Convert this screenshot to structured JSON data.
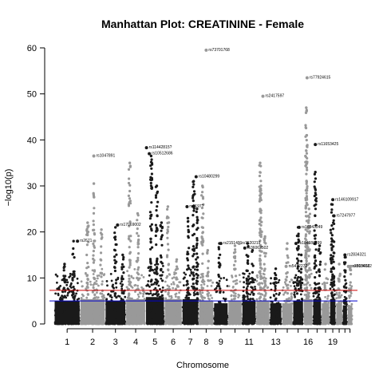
{
  "chart_data": {
    "type": "scatter",
    "title": "Manhattan Plot: CREATININE - Female",
    "xlabel": "Chromosome",
    "ylabel": "−log10(p)",
    "ylim": [
      0,
      62
    ],
    "yticks": [
      0,
      10,
      20,
      30,
      40,
      50,
      60
    ],
    "grid": false,
    "legend": "none",
    "colors": {
      "odd": "#1a1a1a",
      "even": "#999999",
      "suggestive_line": "#cc0000",
      "genomewide_line": "#0000cc"
    },
    "thresholds": [
      {
        "name": "suggestive",
        "value": 7.3,
        "color": "#cc0000"
      },
      {
        "name": "genomewide",
        "value": 5.0,
        "color": "#0000cc"
      }
    ],
    "chromosomes": [
      "1",
      "2",
      "3",
      "4",
      "5",
      "6",
      "7",
      "8",
      "9",
      "10",
      "11",
      "12",
      "13",
      "14",
      "15",
      "16",
      "17",
      "18",
      "19",
      "20",
      "21",
      "22"
    ],
    "x_tick_labels": [
      "1",
      "2",
      "3",
      "4",
      "5",
      "6",
      "7",
      "8",
      "9",
      "11",
      "13",
      "16",
      "19"
    ],
    "chrom_peaks": [
      {
        "chrom": "1",
        "baseline_max": 11,
        "peaks": [
          {
            "y": 13,
            "frac": 0.4
          },
          {
            "y": 18,
            "frac": 0.75
          }
        ]
      },
      {
        "chrom": "2",
        "baseline_max": 12,
        "peaks": [
          {
            "y": 30.5,
            "frac": 0.55
          },
          {
            "y": 22,
            "frac": 0.3
          },
          {
            "y": 20.5,
            "frac": 0.85
          }
        ]
      },
      {
        "chrom": "3",
        "baseline_max": 11,
        "peaks": [
          {
            "y": 21,
            "frac": 0.5
          },
          {
            "y": 15,
            "frac": 0.85
          }
        ]
      },
      {
        "chrom": "4",
        "baseline_max": 12,
        "peaks": [
          {
            "y": 35,
            "frac": 0.2
          },
          {
            "y": 24,
            "frac": 0.6
          }
        ]
      },
      {
        "chrom": "5",
        "baseline_max": 13,
        "peaks": [
          {
            "y": 36.5,
            "frac": 0.3
          },
          {
            "y": 30,
            "frac": 0.6
          },
          {
            "y": 22,
            "frac": 0.85
          }
        ]
      },
      {
        "chrom": "6",
        "baseline_max": 12,
        "peaks": [
          {
            "y": 25.5,
            "frac": 0.2
          },
          {
            "y": 14,
            "frac": 0.7
          }
        ]
      },
      {
        "chrom": "7",
        "baseline_max": 12,
        "peaks": [
          {
            "y": 23,
            "frac": 0.35
          },
          {
            "y": 31,
            "frac": 0.7
          },
          {
            "y": 25,
            "frac": 0.9
          }
        ]
      },
      {
        "chrom": "8",
        "baseline_max": 11,
        "peaks": [
          {
            "y": 30,
            "frac": 0.25
          },
          {
            "y": 16,
            "frac": 0.6
          }
        ]
      },
      {
        "chrom": "9",
        "baseline_max": 10,
        "peaks": [
          {
            "y": 17.5,
            "frac": 0.4
          }
        ]
      },
      {
        "chrom": "10",
        "baseline_max": 11,
        "peaks": [
          {
            "y": 17,
            "frac": 0.5
          }
        ]
      },
      {
        "chrom": "11",
        "baseline_max": 11,
        "peaks": [
          {
            "y": 17.5,
            "frac": 0.4
          },
          {
            "y": 16,
            "frac": 0.75
          }
        ]
      },
      {
        "chrom": "12",
        "baseline_max": 11,
        "peaks": [
          {
            "y": 35,
            "frac": 0.3
          },
          {
            "y": 29,
            "frac": 0.35
          },
          {
            "y": 19,
            "frac": 0.65
          }
        ]
      },
      {
        "chrom": "13",
        "baseline_max": 10,
        "peaks": [
          {
            "y": 12,
            "frac": 0.5
          }
        ]
      },
      {
        "chrom": "14",
        "baseline_max": 10,
        "peaks": [
          {
            "y": 17.5,
            "frac": 0.5
          }
        ]
      },
      {
        "chrom": "15",
        "baseline_max": 11,
        "peaks": [
          {
            "y": 21,
            "frac": 0.5
          },
          {
            "y": 15,
            "frac": 0.8
          }
        ]
      },
      {
        "chrom": "16",
        "baseline_max": 12,
        "peaks": [
          {
            "y": 47,
            "frac": 0.3
          },
          {
            "y": 41,
            "frac": 0.35
          },
          {
            "y": 25,
            "frac": 0.6
          }
        ]
      },
      {
        "chrom": "17",
        "baseline_max": 12,
        "peaks": [
          {
            "y": 33,
            "frac": 0.3
          },
          {
            "y": 17,
            "frac": 0.8
          }
        ]
      },
      {
        "chrom": "18",
        "baseline_max": 10,
        "peaks": [
          {
            "y": 13,
            "frac": 0.5
          }
        ]
      },
      {
        "chrom": "19",
        "baseline_max": 12,
        "peaks": [
          {
            "y": 23.5,
            "frac": 0.6
          },
          {
            "y": 26,
            "frac": 0.3
          }
        ]
      },
      {
        "chrom": "20",
        "baseline_max": 10,
        "peaks": [
          {
            "y": 13,
            "frac": 0.5
          }
        ]
      },
      {
        "chrom": "21",
        "baseline_max": 9,
        "peaks": [
          {
            "y": 14.5,
            "frac": 0.5
          }
        ]
      },
      {
        "chrom": "22",
        "baseline_max": 9,
        "peaks": [
          {
            "y": 12,
            "frac": 0.5
          }
        ]
      }
    ],
    "top_snps": [
      {
        "label": "rs73701768",
        "chrom": "8",
        "frac": 0.5,
        "y": 59.5
      },
      {
        "label": "rs77924615",
        "chrom": "16",
        "frac": 0.4,
        "y": 53.5
      },
      {
        "label": "rs2417597",
        "chrom": "12",
        "frac": 0.5,
        "y": 49.5
      },
      {
        "label": "rs11653425",
        "chrom": "17",
        "frac": 0.3,
        "y": 39
      },
      {
        "label": "rs11442815?",
        "chrom": "5",
        "frac": 0.05,
        "y": 38.3
      },
      {
        "label": "rs1047891",
        "chrom": "2",
        "frac": 0.55,
        "y": 36.5
      },
      {
        "label": "rs10512686",
        "chrom": "5",
        "frac": 0.2,
        "y": 37
      },
      {
        "label": "rs10480299",
        "chrom": "7",
        "frac": 0.85,
        "y": 32
      },
      {
        "label": "rs3197?",
        "chrom": "7",
        "frac": 0.3,
        "y": 25.5
      },
      {
        "label": "rs146109917",
        "chrom": "19",
        "frac": 0.5,
        "y": 27
      },
      {
        "label": "rs7247977",
        "chrom": "19",
        "frac": 0.7,
        "y": 23.5
      },
      {
        "label": "rs17069002",
        "chrom": "3",
        "frac": 0.6,
        "y": 21.5
      },
      {
        "label": "rs16943249",
        "chrom": "15",
        "frac": 0.6,
        "y": 21
      },
      {
        "label": "rs2671",
        "chrom": "1",
        "frac": 0.9,
        "y": 18
      },
      {
        "label": "rs2151421",
        "chrom": "9",
        "frac": 0.5,
        "y": 17.5
      },
      {
        "label": "rs7620219",
        "chrom": "10",
        "frac": 0.8,
        "y": 17.5
      },
      {
        "label": "rs36062502",
        "chrom": "11",
        "frac": 0.2,
        "y": 16.5
      },
      {
        "label": "rs184586499",
        "chrom": "15",
        "frac": 0.3,
        "y": 17.5
      },
      {
        "label": "rs2834321",
        "chrom": "21",
        "frac": 0.5,
        "y": 15
      },
      {
        "label": "rs5472272",
        "chrom": "14",
        "frac": 0.4,
        "y": 12.5
      },
      {
        "label": "rs2800652",
        "chrom": "22",
        "frac": 0.2,
        "y": 12.5
      },
      {
        "label": "rs8134682",
        "chrom": "22",
        "frac": 0.6,
        "y": 12.5
      }
    ]
  }
}
